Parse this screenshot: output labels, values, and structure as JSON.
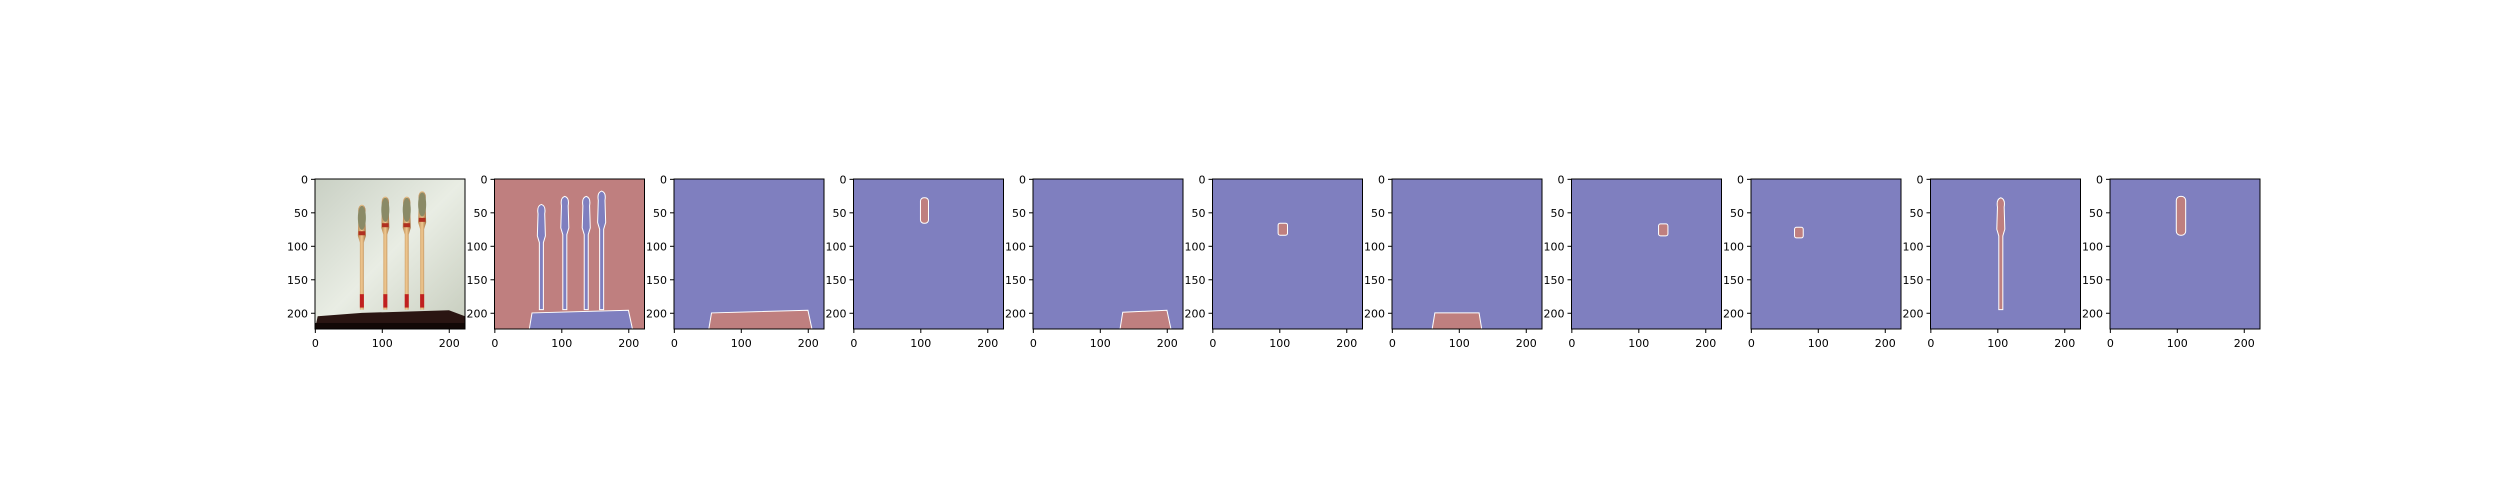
{
  "colors": {
    "background": "#7f7fbf",
    "mask": "#bf7f7f",
    "edge": "#ffffff",
    "axis": "#000000"
  },
  "axes": {
    "x_ticks": [
      "0",
      "100",
      "200"
    ],
    "y_ticks": [
      "0",
      "50",
      "100",
      "150",
      "200"
    ]
  },
  "panels": [
    {
      "id": "photo",
      "content": "photograph of four brushes standing upright on a dark wooden base against a pale background"
    },
    {
      "id": "mask-1",
      "content": "red background with blue silhouettes of four brushes and base"
    },
    {
      "id": "mask-2",
      "content": "red region at bottom (base)"
    },
    {
      "id": "mask-3",
      "content": "small red region near top centre"
    },
    {
      "id": "mask-4",
      "content": "red region at bottom right"
    },
    {
      "id": "mask-5",
      "content": "small red square near centre"
    },
    {
      "id": "mask-6",
      "content": "red region at bottom left"
    },
    {
      "id": "mask-7",
      "content": "small red square right of centre"
    },
    {
      "id": "mask-8",
      "content": "small red square left of centre"
    },
    {
      "id": "mask-9",
      "content": "red vertical brush silhouette in centre"
    },
    {
      "id": "mask-10",
      "content": "red vertical bar near top centre"
    }
  ]
}
